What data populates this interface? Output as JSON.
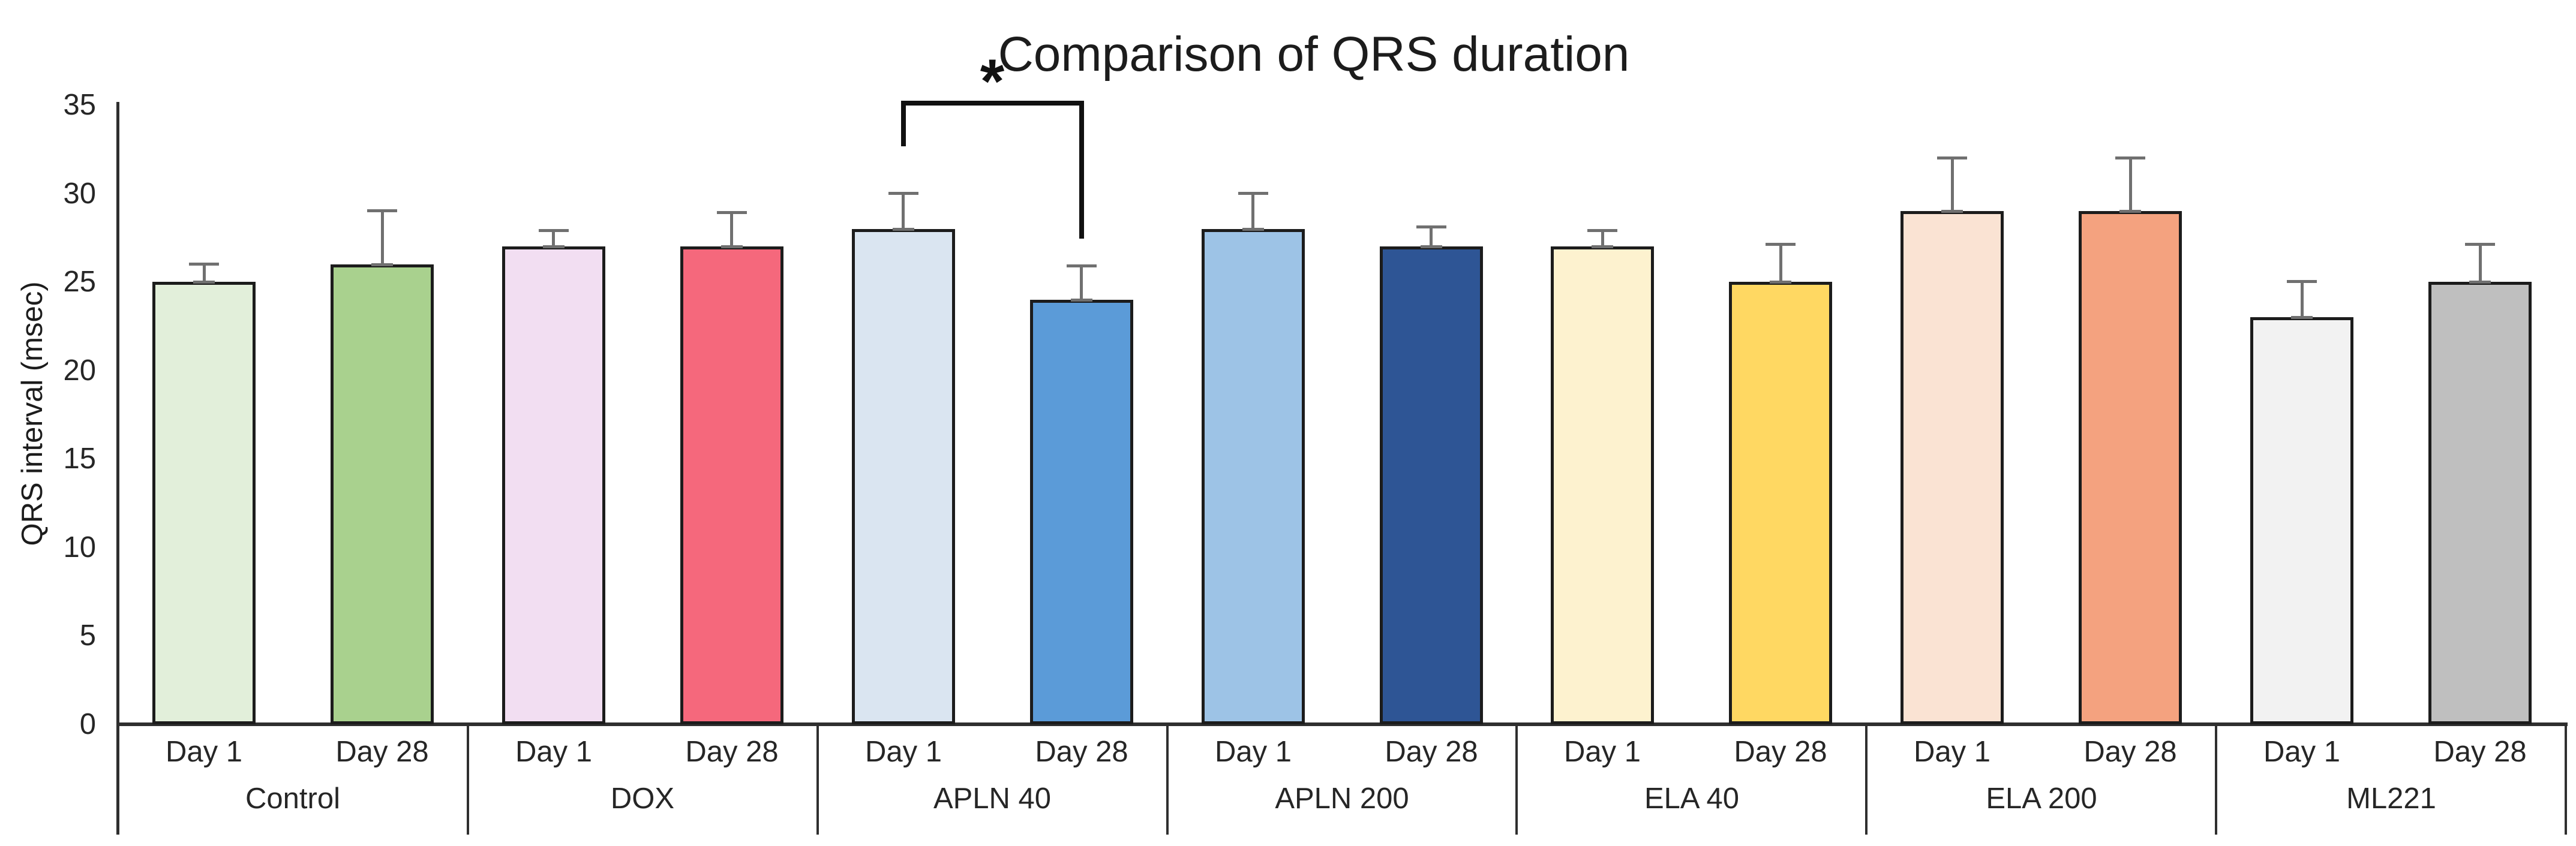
{
  "chart_data": {
    "type": "bar",
    "title": "Comparison of QRS duration",
    "xlabel": "",
    "ylabel": "QRS interval (msec)",
    "ylim": [
      0,
      35
    ],
    "yticks": [
      0,
      5,
      10,
      15,
      20,
      25,
      30,
      35
    ],
    "grid": false,
    "legend": "none",
    "bar_unit": "msec",
    "groups": [
      {
        "label": "Control",
        "bars": [
          {
            "label": "Day 1",
            "value": 25,
            "error": 1.1,
            "color": "#e2efda"
          },
          {
            "label": "Day 28",
            "value": 26,
            "error": 3.1,
            "color": "#a9d18e"
          }
        ]
      },
      {
        "label": "DOX",
        "bars": [
          {
            "label": "Day 1",
            "value": 27,
            "error": 1.0,
            "color": "#f2def2"
          },
          {
            "label": "Day 28",
            "value": 27,
            "error": 2.0,
            "color": "#f5687c"
          }
        ]
      },
      {
        "label": "APLN 40",
        "bars": [
          {
            "label": "Day 1",
            "value": 28,
            "error": 2.1,
            "color": "#dae5f1"
          },
          {
            "label": "Day 28",
            "value": 24,
            "error": 2.0,
            "color": "#5b9bd8"
          }
        ]
      },
      {
        "label": "APLN 200",
        "bars": [
          {
            "label": "Day 1",
            "value": 28,
            "error": 2.1,
            "color": "#9dc3e6"
          },
          {
            "label": "Day 28",
            "value": 27,
            "error": 1.2,
            "color": "#2e5595"
          }
        ]
      },
      {
        "label": "ELA 40",
        "bars": [
          {
            "label": "Day 1",
            "value": 27,
            "error": 1.0,
            "color": "#fdf2cf"
          },
          {
            "label": "Day 28",
            "value": 25,
            "error": 2.2,
            "color": "#ffd862"
          }
        ]
      },
      {
        "label": "ELA 200",
        "bars": [
          {
            "label": "Day 1",
            "value": 29,
            "error": 3.1,
            "color": "#fae3d3"
          },
          {
            "label": "Day 28",
            "value": 29,
            "error": 3.1,
            "color": "#f4a27f"
          }
        ]
      },
      {
        "label": "ML221",
        "bars": [
          {
            "label": "Day 1",
            "value": 23,
            "error": 2.1,
            "color": "#f2f2f2"
          },
          {
            "label": "Day 28",
            "value": 25,
            "error": 2.2,
            "color": "#bfbfbf"
          }
        ]
      }
    ],
    "annotation": {
      "symbol": "*",
      "compares": [
        "APLN 40 Day 1",
        "APLN 40 Day 28"
      ]
    }
  }
}
